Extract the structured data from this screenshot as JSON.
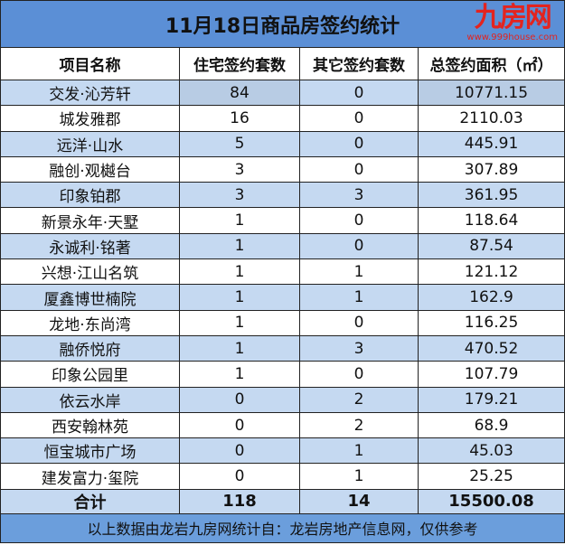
{
  "title": "11月18日商品房签约统计",
  "columns": [
    "项目名称",
    "住宅签约套数",
    "其它签约套数",
    "总签约面积（㎡）"
  ],
  "rows": [
    [
      "交发·沁芳轩",
      "84",
      "0",
      "10771.15"
    ],
    [
      "城发雅郡",
      "16",
      "0",
      "2110.03"
    ],
    [
      "远洋·山水",
      "5",
      "0",
      "445.91"
    ],
    [
      "融创·观樾台",
      "3",
      "0",
      "307.89"
    ],
    [
      "印象铂郡",
      "3",
      "3",
      "361.95"
    ],
    [
      "新景永年·天墅",
      "1",
      "0",
      "118.64"
    ],
    [
      "永诚利·铭著",
      "1",
      "0",
      "87.54"
    ],
    [
      "兴想·江山名筑",
      "1",
      "1",
      "121.12"
    ],
    [
      "厦鑫博世楠院",
      "1",
      "1",
      "162.9"
    ],
    [
      "龙地·东尚湾",
      "1",
      "0",
      "116.25"
    ],
    [
      "融侨悦府",
      "1",
      "3",
      "470.52"
    ],
    [
      "印象公园里",
      "1",
      "0",
      "107.79"
    ],
    [
      "依云水岸",
      "0",
      "2",
      "179.21"
    ],
    [
      "西安翰林苑",
      "0",
      "2",
      "68.9"
    ],
    [
      "恒宝城市广场",
      "0",
      "1",
      "45.03"
    ],
    [
      "建发富力·玺院",
      "0",
      "1",
      "25.25"
    ]
  ],
  "total": [
    "合计",
    "118",
    "14",
    "15500.08"
  ],
  "footer": "以上数据由龙岩九房网统计自：龙岩房地产信息网，仅供参考",
  "watermark": {
    "logo": "九房网",
    "url": "www.999house.com"
  },
  "colors": {
    "title_bg": "#5b8fd6",
    "alt_row": "#c5d9f1",
    "footer_bg": "#6b9edc",
    "watermark": "#e3241f"
  }
}
